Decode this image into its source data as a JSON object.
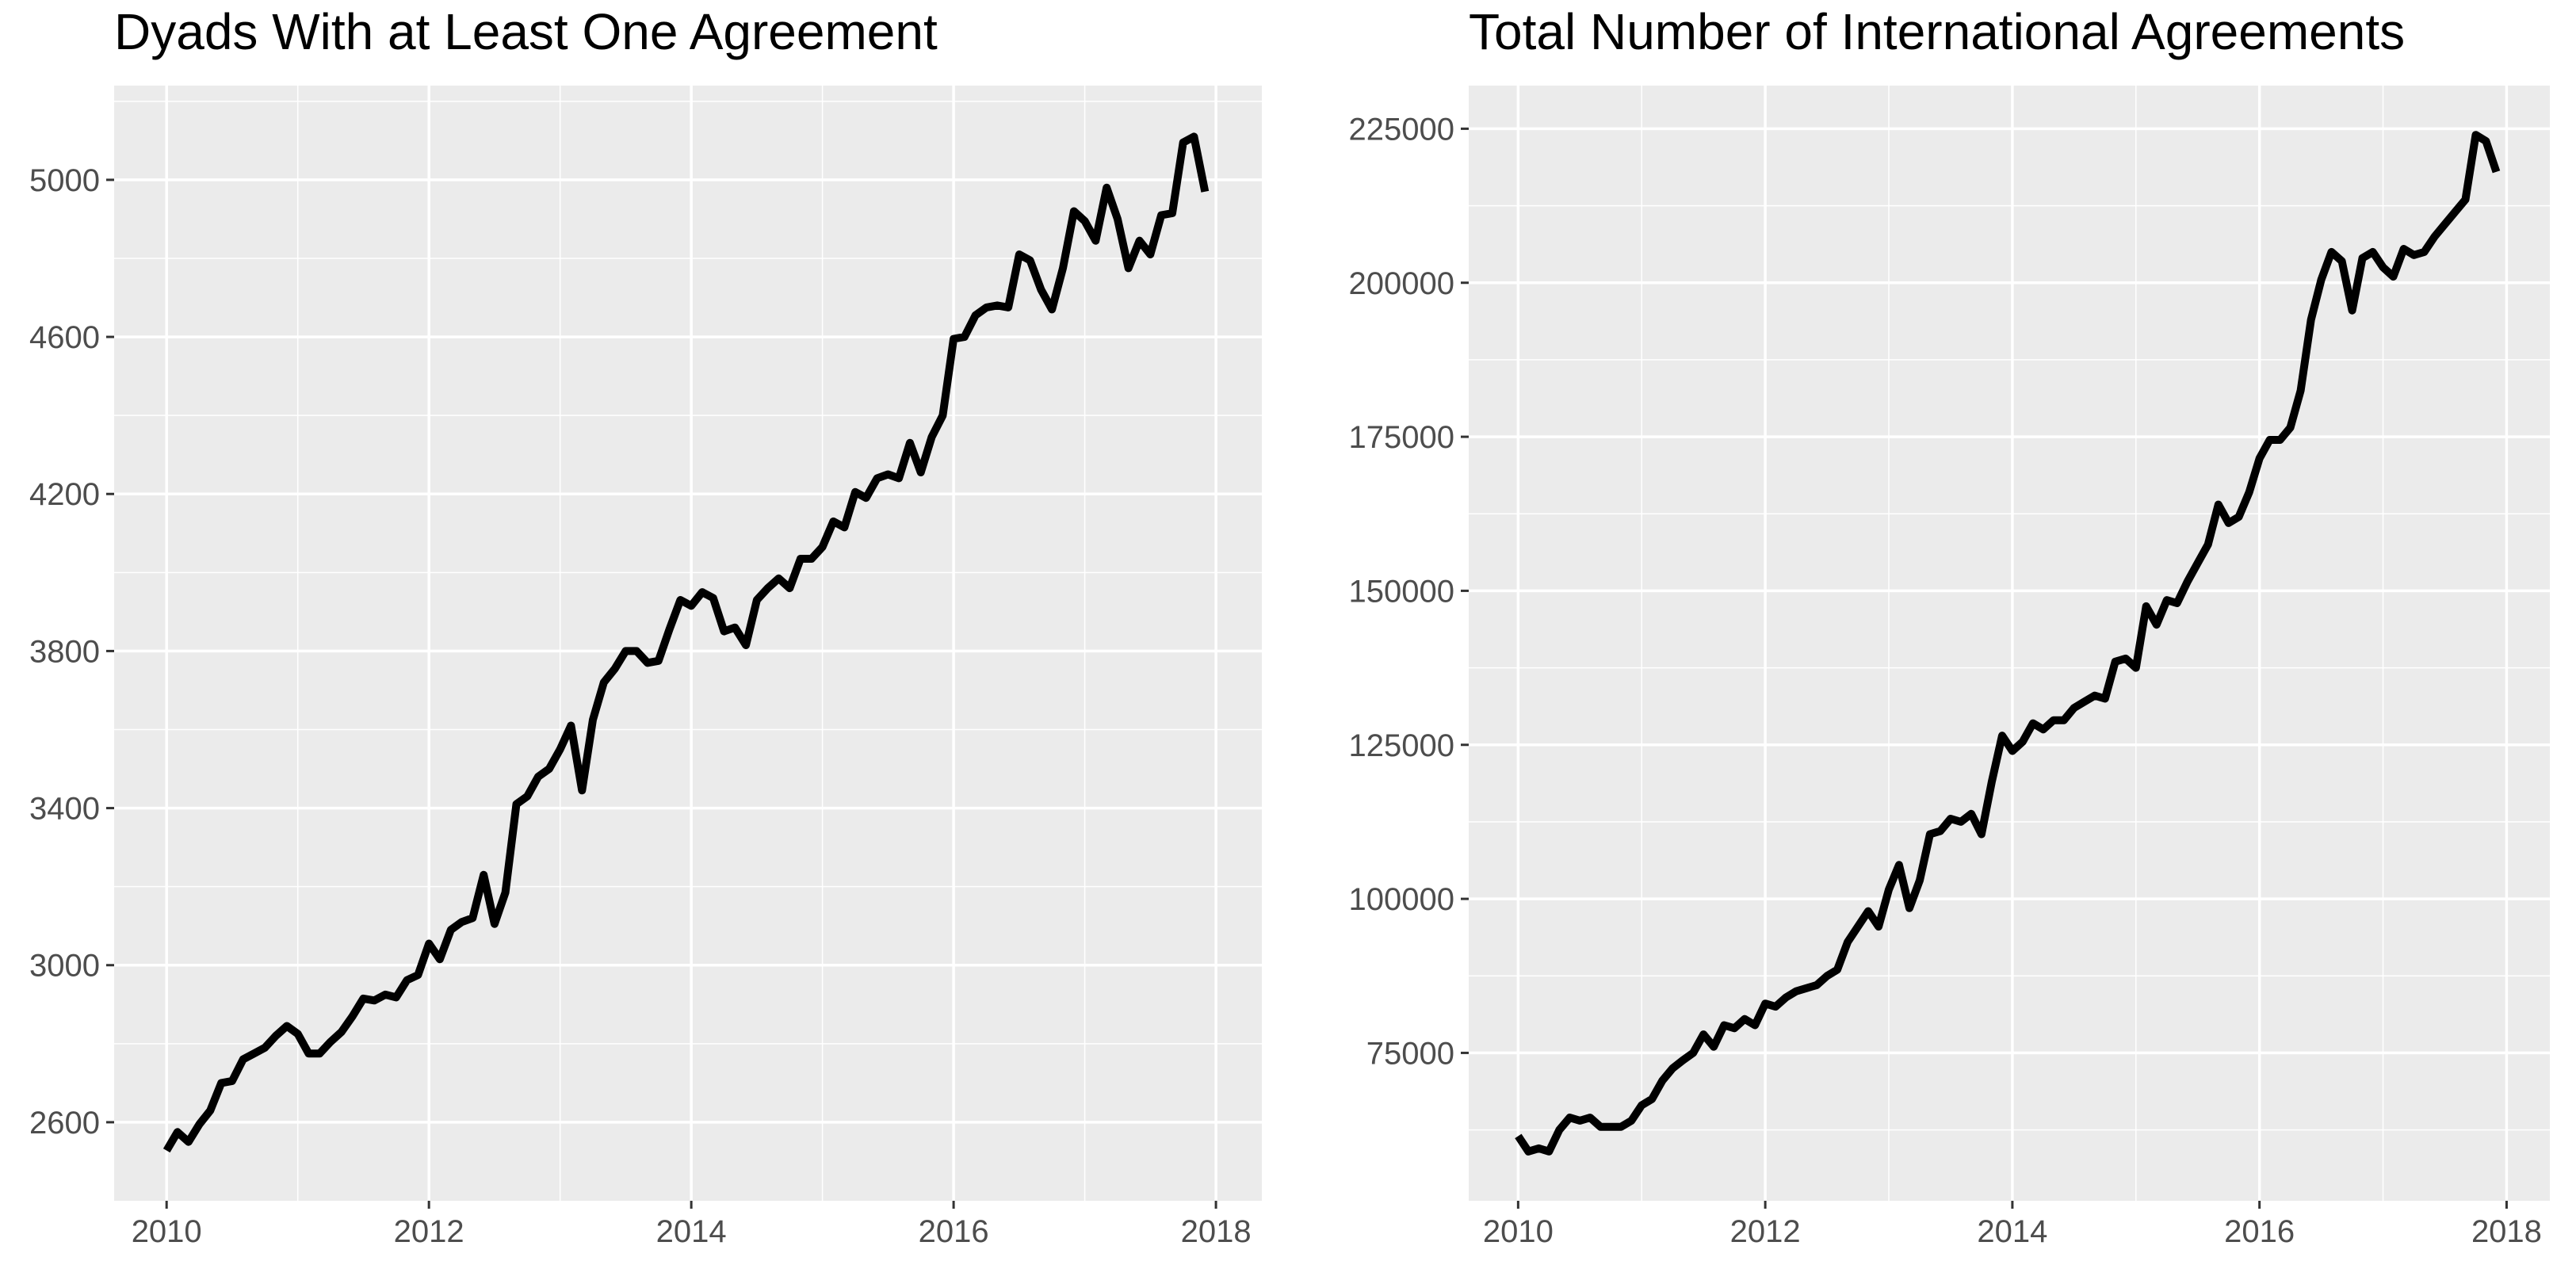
{
  "colors": {
    "panel_background": "#ebebeb",
    "gridline": "#ffffff",
    "series_line": "#000000",
    "tick_label": "#4d4d4d",
    "tick_mark": "#333333"
  },
  "chart_data": [
    {
      "type": "line",
      "title": "Dyads With at Least One Agreement",
      "xlabel": "",
      "ylabel": "",
      "xlim": [
        2009.6,
        2018.35
      ],
      "ylim": [
        2400,
        5240
      ],
      "x_ticks": [
        2010,
        2012,
        2014,
        2016,
        2018
      ],
      "x_tick_labels": [
        "2010",
        "2012",
        "2014",
        "2016",
        "2018"
      ],
      "y_ticks": [
        2600,
        3000,
        3400,
        3800,
        4200,
        4600,
        5000
      ],
      "y_tick_labels": [
        "2600",
        "3000",
        "3400",
        "3800",
        "4200",
        "4600",
        "5000"
      ],
      "grid": true,
      "legend": "none",
      "series": [
        {
          "x": [
            2010.0,
            2010.083,
            2010.167,
            2010.25,
            2010.333,
            2010.417,
            2010.5,
            2010.583,
            2010.667,
            2010.75,
            2010.833,
            2010.917,
            2011.0,
            2011.083,
            2011.167,
            2011.25,
            2011.333,
            2011.417,
            2011.5,
            2011.583,
            2011.667,
            2011.75,
            2011.833,
            2011.917,
            2012.0,
            2012.083,
            2012.167,
            2012.25,
            2012.333,
            2012.417,
            2012.5,
            2012.583,
            2012.667,
            2012.75,
            2012.833,
            2012.917,
            2013.0,
            2013.083,
            2013.167,
            2013.25,
            2013.333,
            2013.417,
            2013.5,
            2013.583,
            2013.667,
            2013.75,
            2013.833,
            2013.917,
            2014.0,
            2014.083,
            2014.167,
            2014.25,
            2014.333,
            2014.417,
            2014.5,
            2014.583,
            2014.667,
            2014.75,
            2014.833,
            2014.917,
            2015.0,
            2015.083,
            2015.167,
            2015.25,
            2015.333,
            2015.417,
            2015.5,
            2015.583,
            2015.667,
            2015.75,
            2015.833,
            2015.917,
            2016.0,
            2016.083,
            2016.167,
            2016.25,
            2016.333,
            2016.417,
            2016.5,
            2016.583,
            2016.667,
            2016.75,
            2016.833,
            2016.917,
            2017.0,
            2017.083,
            2017.167,
            2017.25,
            2017.333,
            2017.417,
            2017.5,
            2017.583,
            2017.667,
            2017.75,
            2017.833,
            2017.917
          ],
          "y": [
            2528,
            2575,
            2550,
            2595,
            2630,
            2700,
            2705,
            2760,
            2775,
            2790,
            2820,
            2845,
            2825,
            2775,
            2775,
            2805,
            2830,
            2870,
            2915,
            2910,
            2925,
            2918,
            2962,
            2975,
            3055,
            3015,
            3090,
            3110,
            3120,
            3230,
            3105,
            3185,
            3410,
            3430,
            3480,
            3500,
            3550,
            3610,
            3445,
            3625,
            3720,
            3755,
            3800,
            3800,
            3770,
            3775,
            3855,
            3930,
            3915,
            3950,
            3935,
            3850,
            3860,
            3815,
            3930,
            3960,
            3985,
            3960,
            4035,
            4035,
            4065,
            4130,
            4115,
            4205,
            4190,
            4240,
            4250,
            4240,
            4330,
            4255,
            4345,
            4400,
            4595,
            4600,
            4655,
            4675,
            4680,
            4675,
            4810,
            4795,
            4720,
            4670,
            4775,
            4920,
            4895,
            4845,
            4980,
            4900,
            4775,
            4845,
            4810,
            4910,
            4915,
            5095,
            5110,
            4970
          ]
        }
      ]
    },
    {
      "type": "line",
      "title": "Total Number of International Agreements",
      "xlabel": "",
      "ylabel": "",
      "xlim": [
        2009.6,
        2018.35
      ],
      "ylim": [
        51000,
        232000
      ],
      "x_ticks": [
        2010,
        2012,
        2014,
        2016,
        2018
      ],
      "x_tick_labels": [
        "2010",
        "2012",
        "2014",
        "2016",
        "2018"
      ],
      "y_ticks": [
        75000,
        100000,
        125000,
        150000,
        175000,
        200000,
        225000
      ],
      "y_tick_labels": [
        "75000",
        "100000",
        "125000",
        "150000",
        "175000",
        "200000",
        "225000"
      ],
      "grid": true,
      "legend": "none",
      "series": [
        {
          "x": [
            2010.0,
            2010.083,
            2010.167,
            2010.25,
            2010.333,
            2010.417,
            2010.5,
            2010.583,
            2010.667,
            2010.75,
            2010.833,
            2010.917,
            2011.0,
            2011.083,
            2011.167,
            2011.25,
            2011.333,
            2011.417,
            2011.5,
            2011.583,
            2011.667,
            2011.75,
            2011.833,
            2011.917,
            2012.0,
            2012.083,
            2012.167,
            2012.25,
            2012.333,
            2012.417,
            2012.5,
            2012.583,
            2012.667,
            2012.75,
            2012.833,
            2012.917,
            2013.0,
            2013.083,
            2013.167,
            2013.25,
            2013.333,
            2013.417,
            2013.5,
            2013.583,
            2013.667,
            2013.75,
            2013.833,
            2013.917,
            2014.0,
            2014.083,
            2014.167,
            2014.25,
            2014.333,
            2014.417,
            2014.5,
            2014.583,
            2014.667,
            2014.75,
            2014.833,
            2014.917,
            2015.0,
            2015.083,
            2015.167,
            2015.25,
            2015.333,
            2015.417,
            2015.5,
            2015.583,
            2015.667,
            2015.75,
            2015.833,
            2015.917,
            2016.0,
            2016.083,
            2016.167,
            2016.25,
            2016.333,
            2016.417,
            2016.5,
            2016.583,
            2016.667,
            2016.75,
            2016.833,
            2016.917,
            2017.0,
            2017.083,
            2017.167,
            2017.25,
            2017.333,
            2017.417,
            2017.5,
            2017.583,
            2017.667,
            2017.75,
            2017.833,
            2017.917
          ],
          "y": [
            61500,
            59000,
            59500,
            59000,
            62500,
            64500,
            64000,
            64500,
            63000,
            63000,
            63000,
            64000,
            66500,
            67500,
            70500,
            72500,
            73800,
            75000,
            78000,
            76000,
            79500,
            79000,
            80500,
            79500,
            83000,
            82500,
            84000,
            85000,
            85500,
            86000,
            87500,
            88500,
            93000,
            95500,
            98000,
            95500,
            101500,
            105500,
            98500,
            103000,
            110500,
            111000,
            113000,
            112500,
            113800,
            110500,
            119000,
            126500,
            124000,
            125500,
            128500,
            127500,
            129000,
            129000,
            131000,
            132000,
            133000,
            132500,
            138500,
            139000,
            137500,
            147500,
            144500,
            148500,
            148000,
            151500,
            154500,
            157500,
            164000,
            161000,
            162000,
            166000,
            171500,
            174500,
            174500,
            176500,
            182500,
            194000,
            200500,
            205000,
            203500,
            195500,
            204000,
            205000,
            202500,
            201000,
            205500,
            204500,
            205000,
            207500,
            209500,
            211500,
            213500,
            224000,
            223000,
            218000
          ]
        }
      ]
    }
  ]
}
